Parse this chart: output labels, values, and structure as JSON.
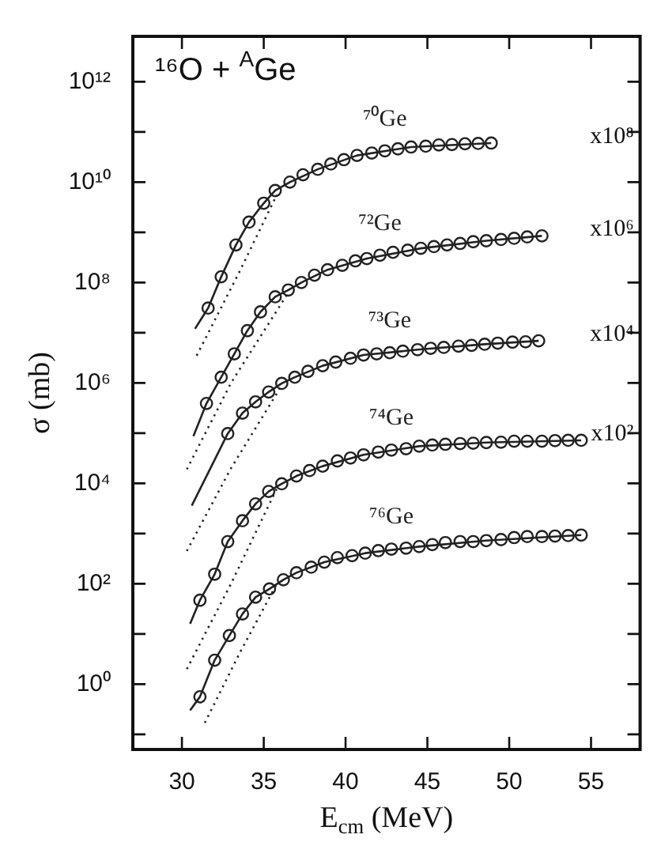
{
  "chart_data": {
    "type": "scatter",
    "xlabel": "E$_{cm}$ (MeV)",
    "ylabel": "σ (mb)",
    "log": "y",
    "grid": false,
    "legend": false,
    "xlim": [
      27,
      58
    ],
    "xticks": [
      30,
      35,
      40,
      45,
      50,
      55
    ],
    "ylim": [
      0.05,
      8000000000000.0
    ],
    "yticks": [
      {
        "value": 0.1,
        "label": null
      },
      {
        "value": 1,
        "label": "10⁰"
      },
      {
        "value": 10,
        "label": null
      },
      {
        "value": 100,
        "label": "10²"
      },
      {
        "value": 1000,
        "label": null
      },
      {
        "value": 10000,
        "label": "10⁴"
      },
      {
        "value": 100000,
        "label": null
      },
      {
        "value": 1000000,
        "label": "10⁶"
      },
      {
        "value": 10000000,
        "label": null
      },
      {
        "value": 100000000,
        "label": "10⁸"
      },
      {
        "value": 1000000000,
        "label": null
      },
      {
        "value": 10000000000,
        "label": "10¹⁰"
      },
      {
        "value": 100000000000,
        "label": null
      },
      {
        "value": 1000000000000,
        "label": "10¹²"
      }
    ],
    "annotations": [
      "¹⁶O + $^{A}$Ge",
      "x10⁸",
      "x10⁶",
      "x10⁴",
      "x10²"
    ],
    "series": [
      {
        "name": "⁷⁰Ge",
        "type": "scatter",
        "marker": "circle",
        "color": "#222222",
        "x": [
          31.6,
          32.4,
          33.3,
          34.1,
          35.0,
          35.7,
          36.6,
          37.4,
          38.3,
          39.1,
          39.9,
          40.7,
          41.6,
          42.4,
          43.2,
          44.0,
          44.9,
          45.7,
          46.5,
          47.3,
          48.1,
          48.9
        ],
        "values": [
          31000000.0,
          130000000.0,
          560000000.0,
          1600000000.0,
          3800000000.0,
          6800000000.0,
          10000000000.0,
          14000000000.0,
          18000000000.0,
          23000000000.0,
          28000000000.0,
          34000000000.0,
          38000000000.0,
          42000000000.0,
          46000000000.0,
          50000000000.0,
          52000000000.0,
          55000000000.0,
          56000000000.0,
          58000000000.0,
          59000000000.0,
          60000000000.0
        ]
      },
      {
        "type": "line",
        "line_style": "solid",
        "marker": "none",
        "color": "#222222",
        "x": [
          30.8,
          31.6,
          32.4,
          33.3,
          34.1,
          35.0,
          35.7,
          36.6,
          38.3,
          40.7,
          44.0,
          48.9
        ],
        "values": [
          12000000.0,
          31000000.0,
          130000000.0,
          560000000.0,
          1600000000.0,
          3800000000.0,
          6800000000.0,
          10000000000.0,
          18000000000.0,
          34000000000.0,
          50000000000.0,
          60000000000.0
        ]
      },
      {
        "type": "line",
        "line_style": "dotted",
        "marker": "none",
        "color": "#222222",
        "x": [
          30.9,
          33.5,
          35.8
        ],
        "values": [
          3500000.0,
          160000000.0,
          5600000000.0
        ]
      },
      {
        "name": "⁷²Ge",
        "type": "scatter",
        "marker": "circle",
        "color": "#222222",
        "x": [
          31.5,
          32.4,
          33.2,
          34.0,
          34.8,
          35.7,
          36.5,
          37.3,
          38.1,
          38.9,
          39.8,
          40.6,
          41.3,
          42.1,
          42.9,
          43.8,
          44.6,
          45.4,
          46.2,
          47.0,
          47.8,
          48.6,
          49.5,
          50.3,
          51.1,
          52.0
        ],
        "values": [
          390000.0,
          1300000.0,
          3800000.0,
          11000000.0,
          26000000.0,
          52000000.0,
          71000000.0,
          100000000.0,
          140000000.0,
          180000000.0,
          220000000.0,
          270000000.0,
          300000000.0,
          350000000.0,
          400000000.0,
          440000000.0,
          480000000.0,
          520000000.0,
          560000000.0,
          600000000.0,
          650000000.0,
          680000000.0,
          720000000.0,
          760000000.0,
          810000000.0,
          850000000.0
        ]
      },
      {
        "type": "line",
        "line_style": "solid",
        "marker": "none",
        "color": "#222222",
        "x": [
          30.7,
          31.5,
          32.4,
          33.2,
          34.0,
          34.8,
          35.7,
          36.5,
          37.3,
          38.9,
          41.3,
          44.6,
          48.6,
          52.0
        ],
        "values": [
          87000.0,
          390000.0,
          1300000.0,
          3800000.0,
          11000000.0,
          26000000.0,
          52000000.0,
          71000000.0,
          100000000.0,
          180000000.0,
          300000000.0,
          480000000.0,
          680000000.0,
          850000000.0
        ]
      },
      {
        "type": "line",
        "line_style": "dotted",
        "marker": "none",
        "color": "#222222",
        "x": [
          30.3,
          33.0,
          36.5
        ],
        "values": [
          19000.0,
          1000000.0,
          63000000.0
        ]
      },
      {
        "name": "⁷³Ge",
        "type": "scatter",
        "marker": "circle",
        "color": "#222222",
        "x": [
          32.8,
          33.7,
          34.5,
          35.3,
          36.1,
          36.9,
          37.7,
          38.6,
          39.4,
          40.3,
          41.1,
          41.9,
          42.7,
          43.5,
          44.4,
          45.2,
          46.0,
          46.9,
          47.7,
          48.5,
          49.3,
          50.2,
          51.0,
          51.8
        ],
        "values": [
          98000.0,
          250000.0,
          420000.0,
          660000.0,
          980000.0,
          1300000.0,
          1700000.0,
          2200000.0,
          2600000.0,
          3100000.0,
          3600000.0,
          3800000.0,
          4000000.0,
          4300000.0,
          4600000.0,
          4900000.0,
          5100000.0,
          5400000.0,
          5600000.0,
          5900000.0,
          6200000.0,
          6500000.0,
          6600000.0,
          6900000.0
        ]
      },
      {
        "type": "line",
        "line_style": "solid",
        "marker": "none",
        "color": "#222222",
        "x": [
          30.6,
          32.8,
          33.7,
          34.5,
          35.3,
          36.1,
          36.9,
          38.6,
          41.1,
          44.4,
          48.5,
          51.8
        ],
        "values": [
          3600.0,
          98000.0,
          250000.0,
          420000.0,
          660000.0,
          980000.0,
          1300000.0,
          2200000.0,
          3600000.0,
          4600000.0,
          5900000.0,
          6900000.0
        ]
      },
      {
        "type": "line",
        "line_style": "dotted",
        "marker": "none",
        "color": "#222222",
        "x": [
          30.3,
          33.0,
          36.0
        ],
        "values": [
          450,
          20000.0,
          790000.0
        ]
      },
      {
        "name": "⁷⁴Ge",
        "type": "scatter",
        "marker": "circle",
        "color": "#222222",
        "x": [
          31.1,
          32.0,
          32.8,
          33.7,
          34.5,
          35.3,
          36.1,
          37.0,
          37.8,
          38.6,
          39.5,
          40.3,
          41.1,
          42.0,
          42.8,
          43.7,
          44.5,
          45.3,
          46.1,
          47.0,
          47.8,
          48.6,
          49.5,
          50.3,
          51.1,
          52.0,
          52.8,
          53.6,
          54.4
        ],
        "values": [
          47,
          155,
          690,
          1800.0,
          3900.0,
          6900.0,
          9800.0,
          14000.0,
          18000.0,
          22000.0,
          28000.0,
          32000.0,
          37000.0,
          42000.0,
          46000.0,
          49000.0,
          55000.0,
          58000.0,
          60000.0,
          62000.0,
          63000.0,
          65000.0,
          66000.0,
          69000.0,
          69000.0,
          69000.0,
          71000.0,
          72000.0,
          72000.0
        ]
      },
      {
        "type": "line",
        "line_style": "solid",
        "marker": "none",
        "color": "#222222",
        "x": [
          30.5,
          31.1,
          32.0,
          32.8,
          33.7,
          34.5,
          35.3,
          36.1,
          37.0,
          38.6,
          41.1,
          44.5,
          48.6,
          54.4
        ],
        "values": [
          16,
          47,
          155,
          690,
          1800.0,
          3900.0,
          6900.0,
          9800.0,
          14000.0,
          22000.0,
          37000.0,
          55000.0,
          65000.0,
          72000.0
        ]
      },
      {
        "type": "line",
        "line_style": "dotted",
        "marker": "none",
        "color": "#222222",
        "x": [
          30.3,
          33.0,
          35.8
        ],
        "values": [
          2.0,
          100,
          7900.0
        ]
      },
      {
        "name": "⁷⁶Ge",
        "type": "scatter",
        "marker": "circle",
        "color": "#222222",
        "x": [
          31.1,
          32.0,
          32.9,
          33.7,
          34.5,
          35.35,
          36.2,
          37.0,
          37.9,
          38.7,
          39.5,
          40.4,
          41.2,
          42.0,
          42.8,
          43.7,
          44.5,
          45.3,
          46.1,
          47.0,
          47.8,
          48.6,
          49.5,
          50.3,
          51.1,
          52.0,
          52.8,
          53.6,
          54.4
        ],
        "values": [
          0.56,
          3.0,
          9.3,
          25,
          54,
          79,
          120,
          166,
          214,
          269,
          331,
          363,
          407,
          457,
          490,
          513,
          550,
          603,
          661,
          692,
          692,
          724,
          759,
          832,
          871,
          871,
          891,
          912,
          933
        ]
      },
      {
        "type": "line",
        "line_style": "solid",
        "marker": "none",
        "color": "#222222",
        "x": [
          30.5,
          31.1,
          32.0,
          32.9,
          33.7,
          34.5,
          35.35,
          36.2,
          37.0,
          38.7,
          41.2,
          44.5,
          48.6,
          54.4
        ],
        "values": [
          0.3,
          0.56,
          3.0,
          9.3,
          25,
          54,
          79,
          120,
          166,
          269,
          407,
          550,
          724,
          933
        ]
      },
      {
        "type": "line",
        "line_style": "dotted",
        "marker": "none",
        "color": "#222222",
        "x": [
          31.4,
          33.5,
          35.8
        ],
        "values": [
          0.17,
          4.0,
          100
        ]
      }
    ]
  }
}
